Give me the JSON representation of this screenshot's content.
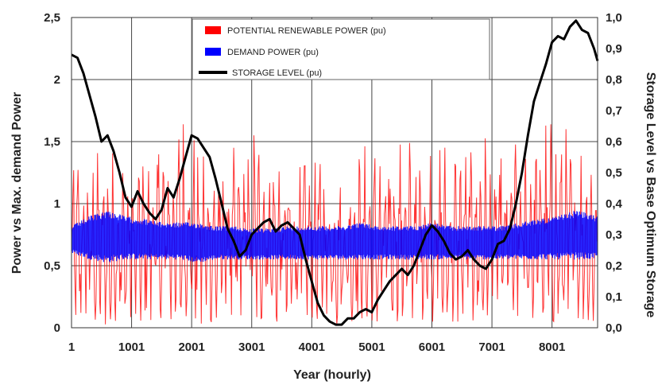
{
  "chart_data": {
    "type": "line",
    "xlabel": "Year  (hourly)",
    "ylabel": "Power vs Max. demand Power",
    "y2label": "Storage Level vs Base Optimum Storage",
    "xlim": [
      1,
      8760
    ],
    "ylim": [
      0,
      2.5
    ],
    "y2lim": [
      0,
      1.0
    ],
    "x_ticks": [
      1,
      1001,
      2001,
      3001,
      4001,
      5001,
      6001,
      7001,
      8001
    ],
    "x_tick_labels": [
      "1",
      "1001",
      "2001",
      "3001",
      "4001",
      "5001",
      "6001",
      "7001",
      "8001"
    ],
    "y_ticks": [
      0,
      0.5,
      1,
      1.5,
      2,
      2.5
    ],
    "y_tick_labels": [
      "0",
      "0,5",
      "1",
      "1,5",
      "2",
      "2,5"
    ],
    "y2_ticks": [
      0,
      0.1,
      0.2,
      0.3,
      0.4,
      0.5,
      0.6,
      0.7,
      0.8,
      0.9,
      1.0
    ],
    "y2_tick_labels": [
      "0,0",
      "0,1",
      "0,2",
      "0,3",
      "0,4",
      "0,5",
      "0,6",
      "0,7",
      "0,8",
      "0,9",
      "1,0"
    ],
    "grid": true,
    "legend_position": "top-center",
    "series": [
      {
        "name": "POTENTIAL RENEWABLE POWER (pu)",
        "color": "#ff0000",
        "axis": "left",
        "envelope": {
          "x": [
            1,
            300,
            600,
            900,
            1200,
            1500,
            1800,
            2100,
            2400,
            2700,
            3000,
            3300,
            3600,
            3900,
            4200,
            4500,
            4800,
            5100,
            5400,
            5700,
            6000,
            6300,
            6600,
            6900,
            7200,
            7500,
            7800,
            8100,
            8400,
            8760
          ],
          "min": [
            0.05,
            0.08,
            0.02,
            0.1,
            0.05,
            0.08,
            0.05,
            0.03,
            0.05,
            0.1,
            0.1,
            0.05,
            0.05,
            0.1,
            0.05,
            0.02,
            0.08,
            0.05,
            0.05,
            0.08,
            0.05,
            0.05,
            0.05,
            0.08,
            0.05,
            0.1,
            0.05,
            0.05,
            0.08,
            0.05
          ],
          "max": [
            1.45,
            1.4,
            1.5,
            1.4,
            1.45,
            1.6,
            1.8,
            1.6,
            1.5,
            1.45,
            1.7,
            1.55,
            1.4,
            1.45,
            1.5,
            1.4,
            1.45,
            1.5,
            1.6,
            1.55,
            1.6,
            1.5,
            1.6,
            1.55,
            1.45,
            1.6,
            1.7,
            1.6,
            1.6,
            1.55
          ]
        }
      },
      {
        "name": "DEMAND POWER (pu)",
        "color": "#0000ff",
        "axis": "left",
        "envelope": {
          "x": [
            1,
            300,
            600,
            900,
            1200,
            1500,
            1800,
            2100,
            2400,
            2700,
            3000,
            3300,
            3600,
            3900,
            4200,
            4500,
            4800,
            5100,
            5400,
            5700,
            6000,
            6300,
            6600,
            6900,
            7200,
            7500,
            7800,
            8100,
            8400,
            8760
          ],
          "min": [
            0.6,
            0.55,
            0.52,
            0.55,
            0.55,
            0.55,
            0.55,
            0.52,
            0.55,
            0.55,
            0.55,
            0.55,
            0.55,
            0.55,
            0.55,
            0.55,
            0.55,
            0.55,
            0.55,
            0.55,
            0.55,
            0.55,
            0.55,
            0.55,
            0.55,
            0.55,
            0.55,
            0.55,
            0.55,
            0.55
          ],
          "max": [
            0.82,
            0.9,
            0.95,
            0.9,
            0.88,
            0.85,
            0.85,
            0.85,
            0.82,
            0.82,
            0.8,
            0.8,
            0.82,
            0.82,
            0.82,
            0.82,
            0.85,
            0.82,
            0.82,
            0.82,
            0.85,
            0.82,
            0.82,
            0.82,
            0.82,
            0.85,
            0.88,
            0.9,
            0.95,
            0.9
          ]
        }
      },
      {
        "name": "STORAGE LEVEL (pu)",
        "color": "#000000",
        "axis": "right",
        "x": [
          1,
          100,
          200,
          300,
          400,
          500,
          600,
          700,
          800,
          900,
          1000,
          1100,
          1200,
          1300,
          1400,
          1500,
          1600,
          1700,
          1800,
          1900,
          2000,
          2100,
          2200,
          2300,
          2400,
          2500,
          2600,
          2700,
          2800,
          2900,
          3000,
          3100,
          3200,
          3300,
          3400,
          3500,
          3600,
          3700,
          3800,
          3900,
          4000,
          4100,
          4200,
          4300,
          4400,
          4500,
          4600,
          4700,
          4800,
          4900,
          5000,
          5100,
          5200,
          5300,
          5400,
          5500,
          5600,
          5700,
          5800,
          5900,
          6000,
          6100,
          6200,
          6300,
          6400,
          6500,
          6600,
          6700,
          6800,
          6900,
          7000,
          7100,
          7200,
          7300,
          7400,
          7500,
          7600,
          7700,
          7800,
          7900,
          8000,
          8100,
          8200,
          8300,
          8400,
          8500,
          8600,
          8700,
          8760
        ],
        "values": [
          0.88,
          0.87,
          0.82,
          0.75,
          0.68,
          0.6,
          0.62,
          0.57,
          0.5,
          0.42,
          0.39,
          0.44,
          0.4,
          0.37,
          0.35,
          0.38,
          0.45,
          0.42,
          0.48,
          0.55,
          0.62,
          0.61,
          0.58,
          0.55,
          0.48,
          0.4,
          0.32,
          0.28,
          0.23,
          0.25,
          0.3,
          0.32,
          0.34,
          0.35,
          0.31,
          0.33,
          0.34,
          0.32,
          0.3,
          0.22,
          0.15,
          0.08,
          0.04,
          0.02,
          0.01,
          0.01,
          0.03,
          0.03,
          0.05,
          0.06,
          0.05,
          0.09,
          0.12,
          0.15,
          0.17,
          0.19,
          0.17,
          0.2,
          0.25,
          0.3,
          0.33,
          0.31,
          0.28,
          0.24,
          0.22,
          0.23,
          0.25,
          0.22,
          0.2,
          0.19,
          0.22,
          0.27,
          0.28,
          0.32,
          0.4,
          0.5,
          0.62,
          0.73,
          0.79,
          0.85,
          0.92,
          0.94,
          0.93,
          0.97,
          0.99,
          0.96,
          0.95,
          0.9,
          0.86
        ]
      }
    ]
  }
}
